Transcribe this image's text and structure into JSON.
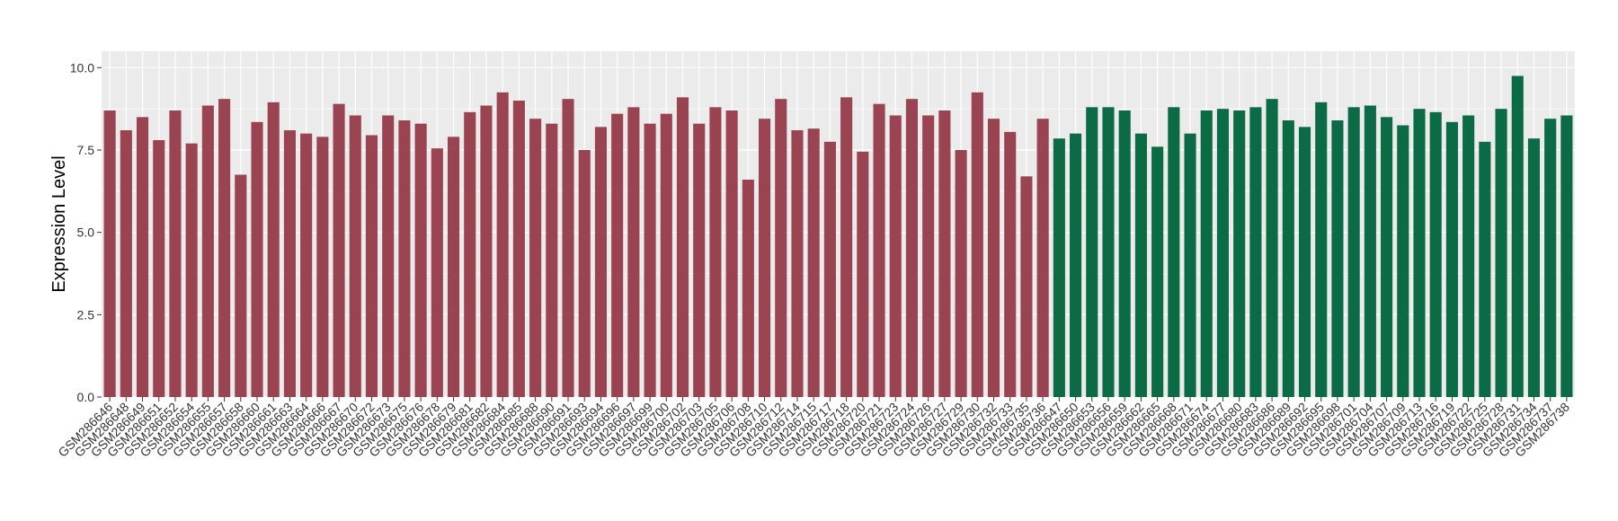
{
  "chart_data": {
    "type": "bar",
    "title": "",
    "xlabel": "",
    "ylabel": "Expression Level",
    "ylim": [
      0,
      10.5
    ],
    "yticks": [
      0.0,
      2.5,
      5.0,
      7.5,
      10.0
    ],
    "ytick_labels": [
      "0.0",
      "2.5",
      "5.0",
      "7.5",
      "10.0"
    ],
    "grid": true,
    "legend": "none",
    "colors": {
      "group_1": "#9b4451",
      "group_2": "#0b6b45",
      "panel": "#ebebeb",
      "grid": "#ffffff"
    },
    "categories": [
      "GSM286646",
      "GSM286648",
      "GSM286649",
      "GSM286651",
      "GSM286652",
      "GSM286654",
      "GSM286655",
      "GSM286657",
      "GSM286658",
      "GSM286660",
      "GSM286661",
      "GSM286663",
      "GSM286664",
      "GSM286666",
      "GSM286667",
      "GSM286670",
      "GSM286672",
      "GSM286673",
      "GSM286675",
      "GSM286676",
      "GSM286678",
      "GSM286679",
      "GSM286681",
      "GSM286682",
      "GSM286684",
      "GSM286685",
      "GSM286688",
      "GSM286690",
      "GSM286691",
      "GSM286693",
      "GSM286694",
      "GSM286696",
      "GSM286697",
      "GSM286699",
      "GSM286700",
      "GSM286702",
      "GSM286703",
      "GSM286705",
      "GSM286706",
      "GSM286708",
      "GSM286710",
      "GSM286712",
      "GSM286714",
      "GSM286715",
      "GSM286717",
      "GSM286718",
      "GSM286720",
      "GSM286721",
      "GSM286723",
      "GSM286724",
      "GSM286726",
      "GSM286727",
      "GSM286729",
      "GSM286730",
      "GSM286732",
      "GSM286733",
      "GSM286735",
      "GSM286736",
      "GSM286647",
      "GSM286650",
      "GSM286653",
      "GSM286656",
      "GSM286659",
      "GSM286662",
      "GSM286665",
      "GSM286668",
      "GSM286671",
      "GSM286674",
      "GSM286677",
      "GSM286680",
      "GSM286683",
      "GSM286686",
      "GSM286689",
      "GSM286692",
      "GSM286695",
      "GSM286698",
      "GSM286701",
      "GSM286704",
      "GSM286707",
      "GSM286709",
      "GSM286713",
      "GSM286716",
      "GSM286719",
      "GSM286722",
      "GSM286725",
      "GSM286728",
      "GSM286731",
      "GSM286734",
      "GSM286737",
      "GSM286738"
    ],
    "values": [
      8.7,
      8.1,
      8.5,
      7.8,
      8.7,
      7.7,
      8.85,
      9.05,
      6.75,
      8.35,
      8.95,
      8.1,
      8.0,
      7.9,
      8.9,
      8.55,
      7.95,
      8.55,
      8.4,
      8.3,
      7.55,
      7.9,
      8.65,
      8.85,
      9.25,
      9.0,
      8.45,
      8.3,
      9.05,
      7.5,
      8.2,
      8.6,
      8.8,
      8.3,
      8.6,
      9.1,
      8.3,
      8.8,
      8.7,
      6.6,
      8.45,
      9.05,
      8.1,
      8.15,
      7.75,
      9.1,
      7.45,
      8.9,
      8.55,
      9.05,
      8.55,
      8.7,
      7.5,
      9.25,
      8.45,
      8.05,
      6.7,
      8.45,
      7.85,
      8.0,
      8.8,
      8.8,
      8.7,
      8.0,
      7.6,
      8.8,
      8.0,
      8.7,
      8.75,
      8.7,
      8.8,
      9.05,
      8.4,
      8.2,
      8.95,
      8.4,
      8.8,
      8.85,
      8.5,
      8.25,
      8.75,
      8.65,
      8.35,
      8.55,
      7.75,
      8.75,
      9.75,
      7.85,
      8.45,
      8.55
    ],
    "group_sizes": [
      58,
      32
    ]
  }
}
